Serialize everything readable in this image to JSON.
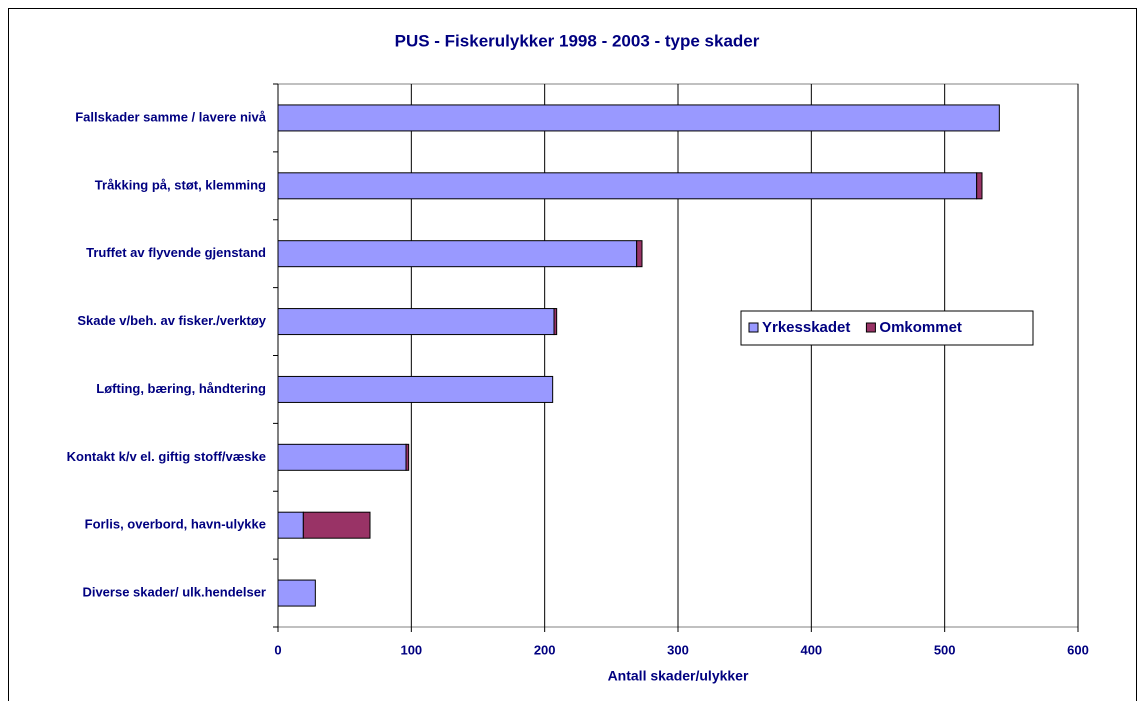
{
  "chart_data": {
    "type": "stacked-bar-horizontal",
    "title": "PUS - Fiskerulykker 1998 - 2003 - type skader",
    "x_label": "Antall skader/ulykker",
    "categories": [
      "Fallskader samme / lavere nivå",
      "Tråkking på, støt, klemming",
      "Truffet av flyvende gjenstand",
      "Skade v/beh. av fisker./verktøy",
      "Løfting, bæring, håndtering",
      "Kontakt k/v el. giftig stoff/væske",
      "Forlis, overbord, havn-ulykke",
      "Diverse skader/ ulk.hendelser"
    ],
    "series": [
      {
        "name": "Yrkesskadet",
        "color": "#9999ff",
        "values": [
          541,
          524,
          269,
          207,
          206,
          96,
          19,
          28
        ]
      },
      {
        "name": "Omkommet",
        "color": "#993366",
        "values": [
          0,
          4,
          4,
          2,
          0,
          2,
          50,
          0
        ]
      }
    ],
    "xlim": [
      0,
      600
    ],
    "xticks": [
      0,
      100,
      200,
      300,
      400,
      500,
      600
    ],
    "grid": true
  }
}
